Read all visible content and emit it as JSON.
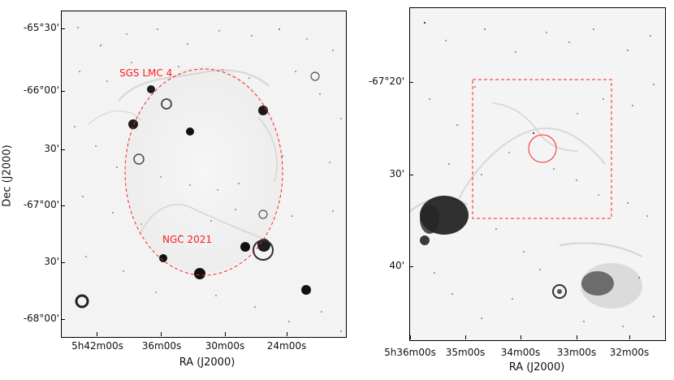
{
  "figure": {
    "left_panel": {
      "y_axis_label": "Dec (J2000)",
      "x_axis_label": "RA (J2000)",
      "y_ticks": [
        "-65°30'",
        "-66°00'",
        "30'",
        "-67°00'",
        "30'",
        "-68°00'"
      ],
      "x_ticks": [
        "5h42m00s",
        "36m00s",
        "30m00s",
        "24m00s"
      ],
      "annotations": [
        "SGS LMC 4",
        "NGC 2021"
      ],
      "colors": {
        "image_background": "#f6f6f6",
        "markers": "#ff1b1b",
        "stars": "#111111"
      }
    },
    "right_panel": {
      "y_ticks": [
        "-67°20'",
        "30'",
        "40'"
      ],
      "x_axis_label": "RA (J2000)",
      "x_ticks": [
        "5h36m00s",
        "35m00s",
        "34m00s",
        "33m00s",
        "32m00s"
      ],
      "colors": {
        "image_background": "#f6f6f6",
        "markers": "#ff1b1b",
        "stars": "#111111"
      }
    }
  }
}
